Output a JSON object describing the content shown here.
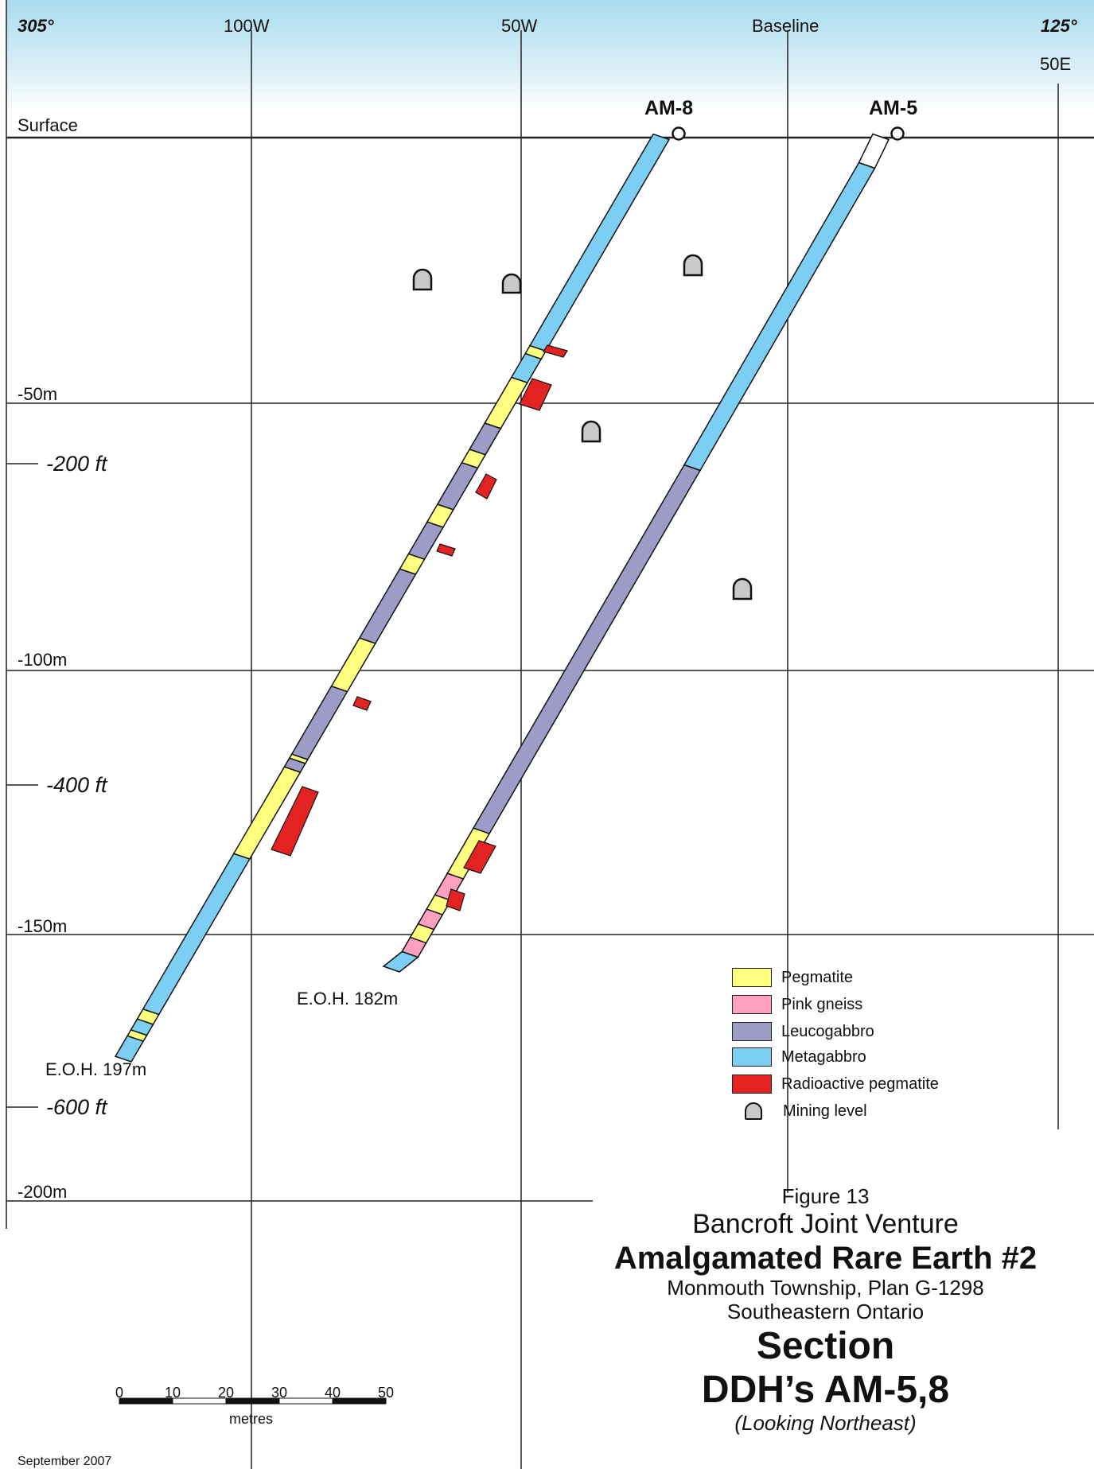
{
  "orientation": {
    "left": "305°",
    "right": "125°"
  },
  "grid_labels": {
    "col_100w": "100W",
    "col_50w": "50W",
    "col_baseline": "Baseline",
    "col_50e": "50E"
  },
  "surface_label": "Surface",
  "depth_labels": {
    "m50": "-50m",
    "m100": "-100m",
    "m150": "-150m",
    "m200": "-200m"
  },
  "foot_labels": {
    "ft200": "-200 ft",
    "ft400": "-400 ft",
    "ft600": "-600 ft"
  },
  "holes": {
    "am8": {
      "name": "AM-8",
      "eoh": "E.O.H. 197m"
    },
    "am5": {
      "name": "AM-5",
      "eoh": "E.O.H. 182m"
    }
  },
  "legend": [
    {
      "label": "Pegmatite",
      "color": "#ffff80"
    },
    {
      "label": "Pink gneiss",
      "color": "#ffa0c0"
    },
    {
      "label": "Leucogabbro",
      "color": "#9c9cc6"
    },
    {
      "label": "Metagabbro",
      "color": "#7ccff2"
    },
    {
      "label": "Radioactive pegmatite",
      "color": "#e32222"
    },
    {
      "label": "Mining level",
      "icon": "mining-level-icon",
      "color": "#c9c9c9"
    }
  ],
  "title_block": {
    "figure": "Figure 13",
    "company": "Bancroft Joint Venture",
    "property": "Amalgamated Rare Earth #2",
    "location1": "Monmouth Township, Plan G-1298",
    "location2": "Southeastern Ontario",
    "section_word": "Section",
    "section_holes": "DDH’s AM-5,8",
    "view": "(Looking Northeast)"
  },
  "scale_bar": {
    "ticks": [
      "0",
      "10",
      "20",
      "30",
      "40",
      "50"
    ],
    "unit": "metres"
  },
  "date": "September 2007"
}
